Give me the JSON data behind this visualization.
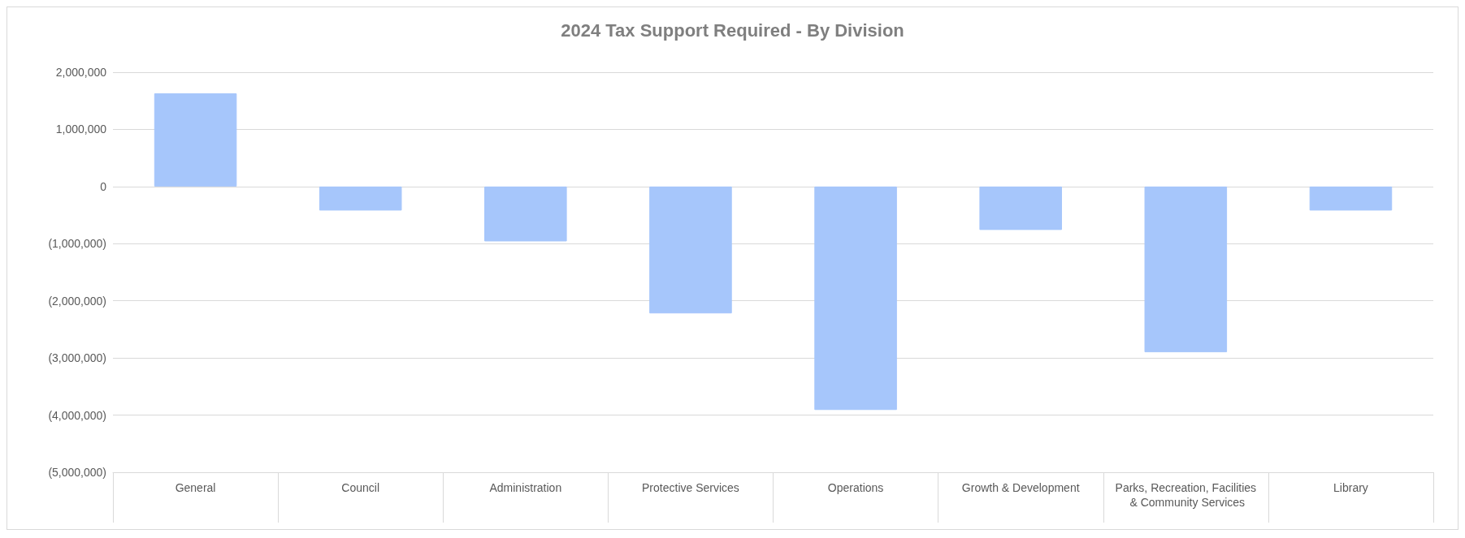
{
  "chart_data": {
    "type": "bar",
    "title": "2024 Tax Support Required - By Division",
    "categories": [
      "General",
      "Council",
      "Administration",
      "Protective Services",
      "Operations",
      "Growth & Development",
      "Parks, Recreation, Facilities & Community Services",
      "Library"
    ],
    "values": [
      1630000,
      -420000,
      -960000,
      -2220000,
      -3910000,
      -760000,
      -2900000,
      -420000
    ],
    "color": "#a6c6fb",
    "ylim": [
      -5000000,
      2000000
    ],
    "yticks": [
      {
        "value": -5000000,
        "label": "(5,000,000)"
      },
      {
        "value": -4000000,
        "label": "(4,000,000)"
      },
      {
        "value": -3000000,
        "label": "(3,000,000)"
      },
      {
        "value": -2000000,
        "label": "(2,000,000)"
      },
      {
        "value": -1000000,
        "label": "(1,000,000)"
      },
      0,
      {
        "value": 1000000,
        "label": "1,000,000"
      },
      {
        "value": 2000000,
        "label": "2,000,000"
      }
    ],
    "grid": "y"
  }
}
